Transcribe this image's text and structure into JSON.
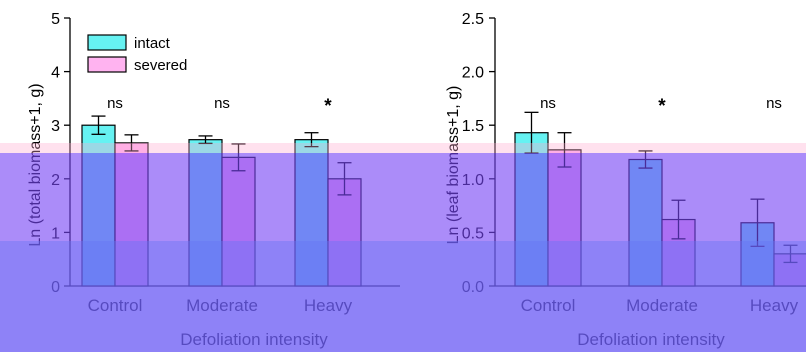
{
  "chart_data": [
    {
      "type": "bar",
      "ylabel": "Ln (total biomass+1, g)",
      "xlabel": "Defoliation intensity",
      "ylim": [
        0,
        5
      ],
      "yticks": [
        0,
        1,
        2,
        3,
        4,
        5
      ],
      "ytick_labels": [
        "0",
        "1",
        "2",
        "3",
        "4",
        "5"
      ],
      "categories": [
        "Control",
        "Moderate",
        "Heavy"
      ],
      "series": [
        {
          "name": "intact",
          "color": "#66f2f2",
          "values": [
            3.0,
            2.73,
            2.73
          ],
          "errors": [
            0.17,
            0.07,
            0.13
          ]
        },
        {
          "name": "severed",
          "color": "#ffb3f0",
          "values": [
            2.67,
            2.4,
            2.0
          ],
          "errors": [
            0.15,
            0.25,
            0.3
          ]
        }
      ],
      "annotations": [
        "ns",
        "ns",
        "*"
      ],
      "legend": "top-left"
    },
    {
      "type": "bar",
      "ylabel": "Ln (leaf biomass+1, g)",
      "xlabel": "Defoliation intensity",
      "ylim": [
        0,
        2.5
      ],
      "yticks": [
        0,
        0.5,
        1,
        1.5,
        2,
        2.5
      ],
      "ytick_labels": [
        "0.0",
        "0.5",
        "1.0",
        "1.5",
        "2.0",
        "2.5"
      ],
      "categories": [
        "Control",
        "Moderate",
        "Heavy"
      ],
      "series": [
        {
          "name": "intact",
          "color": "#66f2f2",
          "values": [
            1.43,
            1.18,
            0.59
          ],
          "errors": [
            0.19,
            0.08,
            0.22
          ]
        },
        {
          "name": "severed",
          "color": "#ffb3f0",
          "values": [
            1.27,
            0.62,
            0.3
          ],
          "errors": [
            0.16,
            0.18,
            0.08
          ]
        }
      ],
      "annotations": [
        "ns",
        "*",
        "ns"
      ]
    }
  ]
}
